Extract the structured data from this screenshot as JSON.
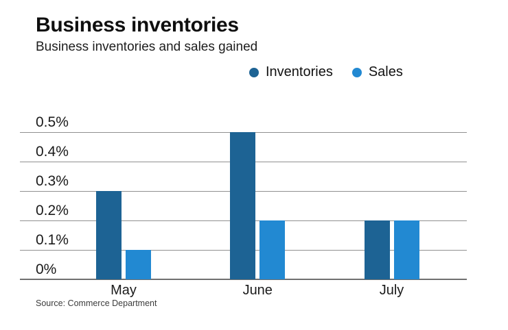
{
  "chart_data": {
    "type": "bar",
    "title": "Business inventories",
    "subtitle": "Business inventories and sales gained",
    "categories": [
      "May",
      "June",
      "July"
    ],
    "series": [
      {
        "name": "Inventories",
        "color": "#1d6394",
        "values": [
          0.3,
          0.5,
          0.2
        ]
      },
      {
        "name": "Sales",
        "color": "#2289d2",
        "values": [
          0.1,
          0.2,
          0.2
        ]
      }
    ],
    "ytick_labels": [
      "0%",
      "0.1%",
      "0.2%",
      "0.3%",
      "0.4%",
      "0.5%"
    ],
    "ylim": [
      0,
      0.5
    ],
    "ytick_step": 0.1,
    "grid": true,
    "legend_position": "top-right",
    "gridline_color": "#8f8f8f",
    "axis_line_color": "#6f6f6f",
    "source": "Source: Commerce Department"
  }
}
